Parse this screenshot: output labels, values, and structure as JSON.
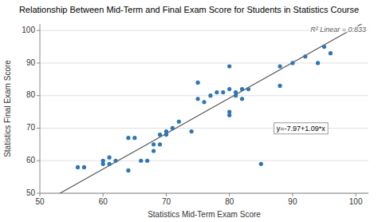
{
  "chart_data": {
    "type": "scatter",
    "title": "Relationship Between Mid-Term and Final Exam Score for Students in Statistics Course",
    "xlabel": "Statistics Mid-Term Exam Score",
    "ylabel": "Statistics Final Exam Score",
    "x": [
      56,
      57,
      60,
      60,
      61,
      61,
      62,
      64,
      64,
      65,
      66,
      67,
      68,
      68,
      69,
      69,
      70,
      70,
      71,
      72,
      74,
      75,
      75,
      76,
      77,
      78,
      79,
      80,
      80,
      80,
      80,
      81,
      81,
      82,
      82,
      83,
      85,
      88,
      88,
      90,
      92,
      94,
      95,
      96
    ],
    "values": [
      58,
      58,
      59,
      60,
      59,
      61,
      60,
      57,
      67,
      67,
      60,
      60,
      63,
      65,
      65,
      68,
      68,
      69,
      70,
      72,
      69,
      79,
      84,
      78,
      80,
      81,
      81,
      74,
      75,
      82,
      89,
      80,
      81,
      79,
      82,
      82,
      59,
      83,
      89,
      90,
      92,
      90,
      95,
      93
    ],
    "color": "#2e75b6",
    "regression": {
      "intercept": -7.97,
      "slope": 1.09,
      "color": "#595959"
    },
    "annotations": [
      "y=-7.97+1.09*x",
      "R² Linear = 0.833"
    ],
    "xlim": [
      50,
      102
    ],
    "ylim": [
      50,
      102
    ],
    "xticks": [
      50,
      60,
      70,
      80,
      90,
      100
    ],
    "yticks": [
      50,
      60,
      70,
      80,
      90,
      100
    ],
    "grid": "y"
  }
}
